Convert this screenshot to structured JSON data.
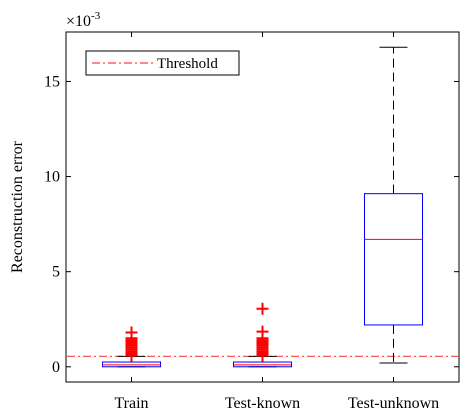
{
  "chart_data": {
    "type": "box",
    "ylabel": "Reconstruction error",
    "y_exponent_label": "×10",
    "y_exponent_power": "-3",
    "y_scale_factor": 0.001,
    "ylim": [
      -0.8,
      17.6
    ],
    "y_ticks": [
      0,
      5,
      10,
      15
    ],
    "y_tick_labels": [
      "0",
      "5",
      "10",
      "15"
    ],
    "grid": false,
    "legend_position": "top-left",
    "categories": [
      "Train",
      "Test-known",
      "Test-unknown"
    ],
    "boxes": [
      {
        "category": "Train",
        "whisker_low": 0.0,
        "q1": 0.0,
        "median": 0.1,
        "q3": 0.25,
        "whisker_high": 0.55,
        "outliers": [
          0.6,
          0.7,
          0.8,
          0.9,
          1.0,
          1.1,
          1.2,
          1.3,
          1.4,
          1.5,
          1.8
        ]
      },
      {
        "category": "Test-known",
        "whisker_low": 0.0,
        "q1": 0.0,
        "median": 0.1,
        "q3": 0.25,
        "whisker_high": 0.55,
        "outliers": [
          0.6,
          0.7,
          0.8,
          0.9,
          1.0,
          1.1,
          1.2,
          1.3,
          1.4,
          1.5,
          1.85,
          3.05
        ]
      },
      {
        "category": "Test-unknown",
        "whisker_low": 0.2,
        "q1": 2.2,
        "median": 6.7,
        "q3": 9.1,
        "whisker_high": 16.8,
        "outliers": []
      }
    ],
    "threshold": {
      "label": "Threshold",
      "value": 0.55,
      "color": "#ff4040",
      "style": "dash-dot"
    },
    "colors": {
      "box": "#0000ff",
      "median": "#ff0000",
      "outlier": "#ff0000",
      "whisker": "#000000"
    }
  }
}
